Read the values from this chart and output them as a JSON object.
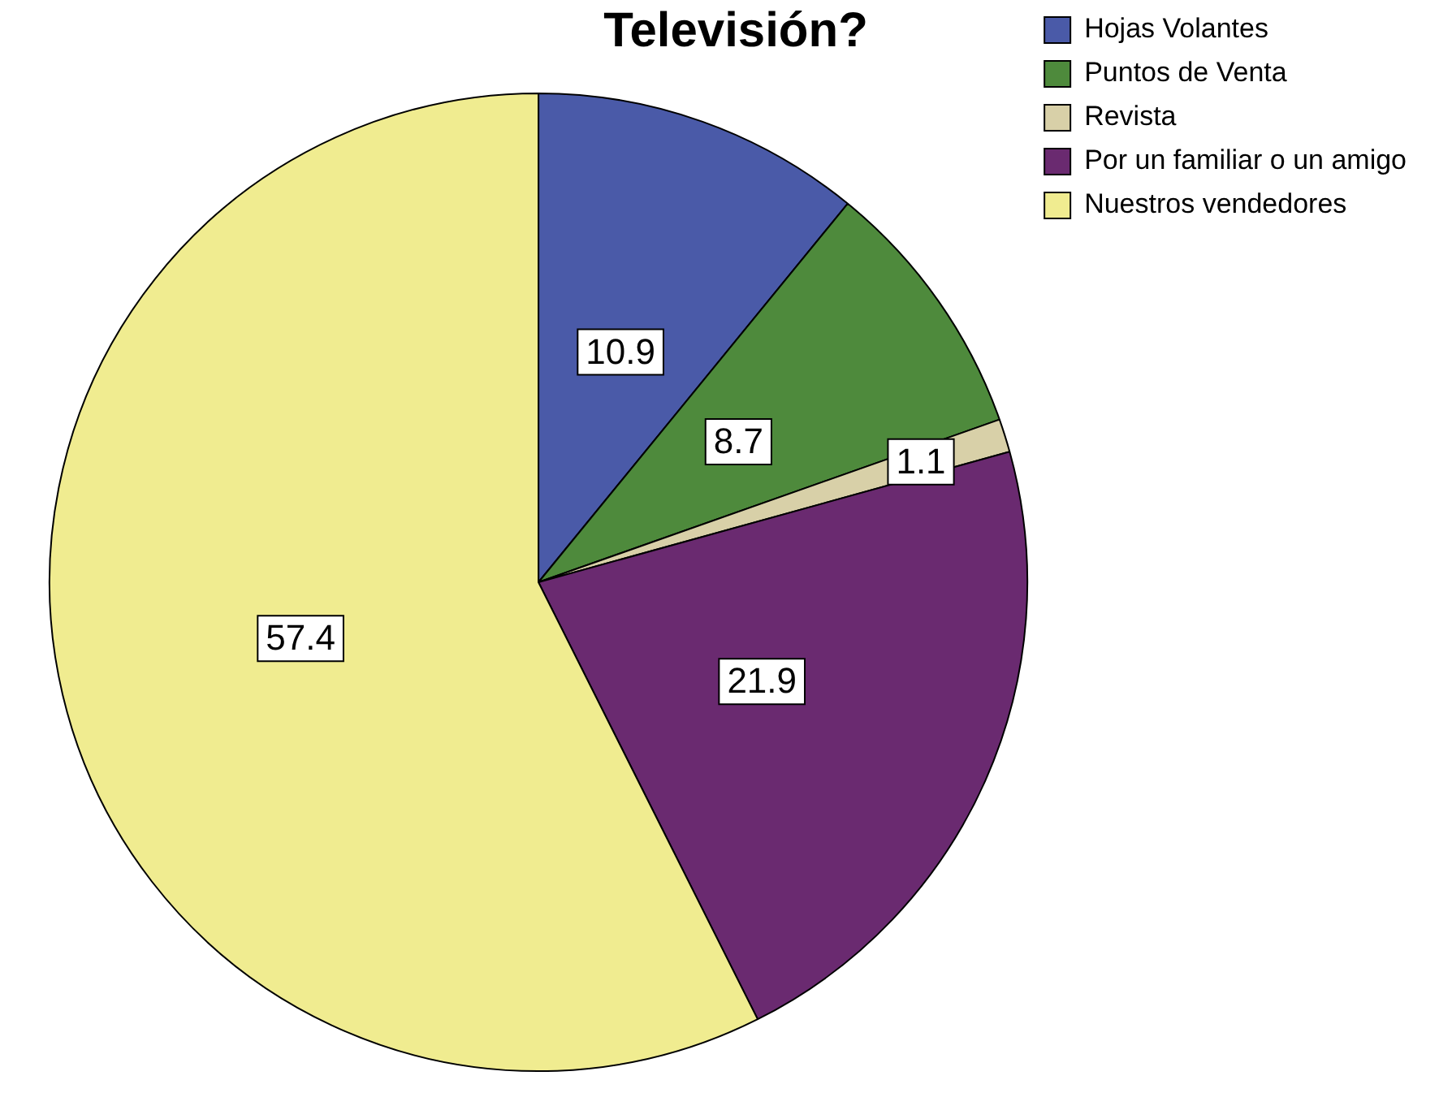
{
  "chart_data": {
    "type": "pie",
    "title": "Televisión?",
    "categories": [
      "Hojas Volantes",
      "Puntos de Venta",
      "Revista",
      "Por un familiar o un amigo",
      "Nuestros vendedores"
    ],
    "values": [
      10.9,
      8.7,
      1.1,
      21.9,
      57.4
    ],
    "colors": [
      "#4a5aa8",
      "#4e8a3c",
      "#d8d0a8",
      "#6a2a70",
      "#f0ec90"
    ],
    "data_labels": true,
    "legend": "top right"
  }
}
